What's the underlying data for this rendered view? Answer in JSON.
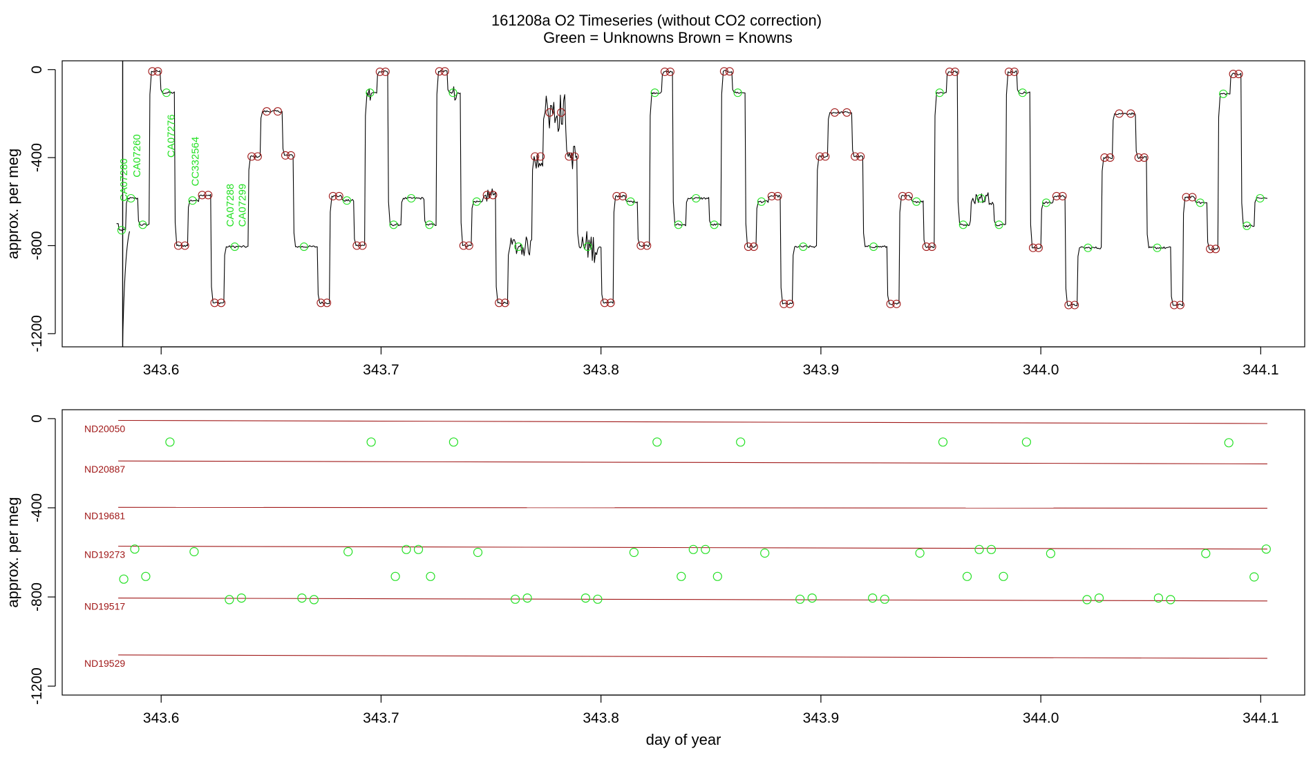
{
  "chart_data": {
    "title": "161208a   O2 Timeseries (without CO2 correction)",
    "subtitle_unknowns": "Green = Unknowns",
    "subtitle_knowns": "Brown = Knowns",
    "colors": {
      "unknown": "#22e022",
      "known": "#a01818",
      "trace": "#000000",
      "axis": "#000000"
    },
    "x_ticks": [
      "343.6",
      "343.7",
      "343.8",
      "343.9",
      "344.0",
      "344.1"
    ],
    "x_tick_values": [
      343.6,
      343.7,
      343.8,
      343.9,
      344.0,
      344.1
    ],
    "y_ticks": [
      "0",
      "-400",
      "-800",
      "-1200"
    ],
    "y_tick_values": [
      0,
      -400,
      -800,
      -1200
    ],
    "xlim": [
      343.555,
      344.12
    ],
    "panels": [
      {
        "type": "line",
        "ylabel": "approx. per meg",
        "ylim": [
          -1260,
          40
        ],
        "start_x": 343.5805,
        "start_y": -700,
        "segments": [
          {
            "x0": 343.5805,
            "x1": 343.5838,
            "y": -730,
            "k": "u"
          },
          {
            "x0": 343.5838,
            "x1": 343.5893,
            "y": -585,
            "k": "u"
          },
          {
            "x0": 343.5893,
            "x1": 343.5945,
            "y": -705,
            "k": "u"
          },
          {
            "x0": 343.5945,
            "x1": 343.5995,
            "y": -8,
            "k": "k"
          },
          {
            "x0": 343.5995,
            "x1": 343.606,
            "y": -105,
            "k": "u"
          },
          {
            "x0": 343.606,
            "x1": 343.612,
            "y": -800,
            "k": "k"
          },
          {
            "x0": 343.612,
            "x1": 343.617,
            "y": -595,
            "k": "u"
          },
          {
            "x0": 343.617,
            "x1": 343.6225,
            "y": -570,
            "k": "k"
          },
          {
            "x0": 343.6225,
            "x1": 343.6285,
            "y": -1060,
            "k": "k"
          },
          {
            "x0": 343.6285,
            "x1": 343.6395,
            "y": -805,
            "k": "u"
          },
          {
            "x0": 343.6395,
            "x1": 343.645,
            "y": -395,
            "k": "k"
          },
          {
            "x0": 343.645,
            "x1": 343.655,
            "y": -190,
            "k": "k"
          },
          {
            "x0": 343.655,
            "x1": 343.66,
            "y": -390,
            "k": "k"
          },
          {
            "x0": 343.66,
            "x1": 343.671,
            "y": -805,
            "k": "u"
          },
          {
            "x0": 343.671,
            "x1": 343.6765,
            "y": -1060,
            "k": "k"
          },
          {
            "x0": 343.6765,
            "x1": 343.682,
            "y": -575,
            "k": "k"
          },
          {
            "x0": 343.682,
            "x1": 343.6875,
            "y": -595,
            "k": "u"
          },
          {
            "x0": 343.6875,
            "x1": 343.6925,
            "y": -800,
            "k": "k"
          },
          {
            "x0": 343.6925,
            "x1": 343.698,
            "y": -105,
            "k": "u"
          },
          {
            "x0": 343.698,
            "x1": 343.703,
            "y": -10,
            "k": "k"
          },
          {
            "x0": 343.703,
            "x1": 343.709,
            "y": -705,
            "k": "u"
          },
          {
            "x0": 343.709,
            "x1": 343.7195,
            "y": -585,
            "k": "u"
          },
          {
            "x0": 343.7195,
            "x1": 343.725,
            "y": -705,
            "k": "u"
          },
          {
            "x0": 343.725,
            "x1": 343.73,
            "y": -8,
            "k": "k"
          },
          {
            "x0": 343.73,
            "x1": 343.736,
            "y": -105,
            "k": "u"
          },
          {
            "x0": 343.736,
            "x1": 343.741,
            "y": -800,
            "k": "k"
          },
          {
            "x0": 343.741,
            "x1": 343.7465,
            "y": -600,
            "k": "u"
          },
          {
            "x0": 343.7465,
            "x1": 343.752,
            "y": -570,
            "k": "k"
          },
          {
            "x0": 343.752,
            "x1": 343.7575,
            "y": -1060,
            "k": "k"
          },
          {
            "x0": 343.7575,
            "x1": 343.7685,
            "y": -805,
            "k": "u"
          },
          {
            "x0": 343.7685,
            "x1": 343.7735,
            "y": -395,
            "k": "k"
          },
          {
            "x0": 343.7735,
            "x1": 343.784,
            "y": -195,
            "k": "k"
          },
          {
            "x0": 343.784,
            "x1": 343.789,
            "y": -395,
            "k": "k"
          },
          {
            "x0": 343.789,
            "x1": 343.8,
            "y": -805,
            "k": "u"
          },
          {
            "x0": 343.8,
            "x1": 343.8055,
            "y": -1060,
            "k": "k"
          },
          {
            "x0": 343.8055,
            "x1": 343.811,
            "y": -575,
            "k": "k"
          },
          {
            "x0": 343.811,
            "x1": 343.8165,
            "y": -600,
            "k": "u"
          },
          {
            "x0": 343.8165,
            "x1": 343.822,
            "y": -800,
            "k": "k"
          },
          {
            "x0": 343.822,
            "x1": 343.8275,
            "y": -105,
            "k": "u"
          },
          {
            "x0": 343.8275,
            "x1": 343.8325,
            "y": -10,
            "k": "k"
          },
          {
            "x0": 343.8325,
            "x1": 343.8385,
            "y": -705,
            "k": "u"
          },
          {
            "x0": 343.8385,
            "x1": 343.849,
            "y": -585,
            "k": "u"
          },
          {
            "x0": 343.849,
            "x1": 343.8545,
            "y": -705,
            "k": "u"
          },
          {
            "x0": 343.8545,
            "x1": 343.8595,
            "y": -8,
            "k": "k"
          },
          {
            "x0": 343.8595,
            "x1": 343.8655,
            "y": -105,
            "k": "u"
          },
          {
            "x0": 343.8655,
            "x1": 343.8705,
            "y": -805,
            "k": "k"
          },
          {
            "x0": 343.8705,
            "x1": 343.876,
            "y": -600,
            "k": "u"
          },
          {
            "x0": 343.876,
            "x1": 343.8815,
            "y": -575,
            "k": "k"
          },
          {
            "x0": 343.8815,
            "x1": 343.887,
            "y": -1065,
            "k": "k"
          },
          {
            "x0": 343.887,
            "x1": 343.898,
            "y": -805,
            "k": "u"
          },
          {
            "x0": 343.898,
            "x1": 343.903,
            "y": -395,
            "k": "k"
          },
          {
            "x0": 343.903,
            "x1": 343.914,
            "y": -195,
            "k": "k"
          },
          {
            "x0": 343.914,
            "x1": 343.919,
            "y": -395,
            "k": "k"
          },
          {
            "x0": 343.919,
            "x1": 343.93,
            "y": -805,
            "k": "u"
          },
          {
            "x0": 343.93,
            "x1": 343.9355,
            "y": -1065,
            "k": "k"
          },
          {
            "x0": 343.9355,
            "x1": 343.941,
            "y": -575,
            "k": "k"
          },
          {
            "x0": 343.941,
            "x1": 343.9465,
            "y": -600,
            "k": "u"
          },
          {
            "x0": 343.9465,
            "x1": 343.9515,
            "y": -805,
            "k": "k"
          },
          {
            "x0": 343.9515,
            "x1": 343.957,
            "y": -105,
            "k": "u"
          },
          {
            "x0": 343.957,
            "x1": 343.962,
            "y": -10,
            "k": "k"
          },
          {
            "x0": 343.962,
            "x1": 343.968,
            "y": -705,
            "k": "u"
          },
          {
            "x0": 343.968,
            "x1": 343.9785,
            "y": -585,
            "k": "u"
          },
          {
            "x0": 343.9785,
            "x1": 343.984,
            "y": -705,
            "k": "u"
          },
          {
            "x0": 343.984,
            "x1": 343.989,
            "y": -10,
            "k": "k"
          },
          {
            "x0": 343.989,
            "x1": 343.995,
            "y": -105,
            "k": "u"
          },
          {
            "x0": 343.995,
            "x1": 344.0,
            "y": -810,
            "k": "k"
          },
          {
            "x0": 344.0,
            "x1": 344.0055,
            "y": -605,
            "k": "u"
          },
          {
            "x0": 344.0055,
            "x1": 344.011,
            "y": -575,
            "k": "k"
          },
          {
            "x0": 344.011,
            "x1": 344.0165,
            "y": -1070,
            "k": "k"
          },
          {
            "x0": 344.0165,
            "x1": 344.0275,
            "y": -810,
            "k": "u"
          },
          {
            "x0": 344.0275,
            "x1": 344.0325,
            "y": -400,
            "k": "k"
          },
          {
            "x0": 344.0325,
            "x1": 344.043,
            "y": -200,
            "k": "k"
          },
          {
            "x0": 344.043,
            "x1": 344.048,
            "y": -400,
            "k": "k"
          },
          {
            "x0": 344.048,
            "x1": 344.059,
            "y": -810,
            "k": "u"
          },
          {
            "x0": 344.059,
            "x1": 344.0645,
            "y": -1070,
            "k": "k"
          },
          {
            "x0": 344.0645,
            "x1": 344.07,
            "y": -580,
            "k": "k"
          },
          {
            "x0": 344.07,
            "x1": 344.0755,
            "y": -605,
            "k": "u"
          },
          {
            "x0": 344.0755,
            "x1": 344.0805,
            "y": -815,
            "k": "k"
          },
          {
            "x0": 344.0805,
            "x1": 344.086,
            "y": -110,
            "k": "u"
          },
          {
            "x0": 344.086,
            "x1": 344.091,
            "y": -20,
            "k": "k"
          },
          {
            "x0": 344.091,
            "x1": 344.097,
            "y": -710,
            "k": "u"
          },
          {
            "x0": 344.097,
            "x1": 344.103,
            "y": -585,
            "k": "u"
          }
        ],
        "noisy": [
          {
            "x0": 343.733,
            "x1": 343.735,
            "amp": 45
          },
          {
            "x0": 343.746,
            "x1": 343.752,
            "amp": 30
          },
          {
            "x0": 343.758,
            "x1": 343.769,
            "amp": 45
          },
          {
            "x0": 343.769,
            "x1": 343.774,
            "amp": 60
          },
          {
            "x0": 343.774,
            "x1": 343.784,
            "amp": 90
          },
          {
            "x0": 343.784,
            "x1": 343.7895,
            "amp": 60
          },
          {
            "x0": 343.7895,
            "x1": 343.799,
            "amp": 70
          },
          {
            "x0": 343.693,
            "x1": 343.696,
            "amp": 40
          },
          {
            "x0": 343.968,
            "x1": 343.979,
            "amp": 30
          }
        ],
        "spike_x": 343.5825,
        "annotations": [
          {
            "text": "CA07280",
            "x": 343.5845,
            "y": -600
          },
          {
            "text": "CA07260",
            "x": 343.5905,
            "y": -490
          },
          {
            "text": "CA07276",
            "x": 343.606,
            "y": -400
          },
          {
            "text": "CC332564",
            "x": 343.617,
            "y": -530
          },
          {
            "text": "CA07288",
            "x": 343.633,
            "y": -715
          },
          {
            "text": "CA07299",
            "x": 343.6385,
            "y": -715
          }
        ]
      },
      {
        "type": "scatter",
        "xlabel": "day of year",
        "ylabel": "approx. per meg",
        "ylim": [
          -1240,
          40
        ],
        "reference_lines": [
          {
            "name": "ND20050",
            "y0": -8,
            "y1": -22
          },
          {
            "name": "ND20887",
            "y0": -190,
            "y1": -203
          },
          {
            "name": "ND19681",
            "y0": -398,
            "y1": -402
          },
          {
            "name": "ND19273",
            "y0": -572,
            "y1": -585
          },
          {
            "name": "ND19517",
            "y0": -805,
            "y1": -818
          },
          {
            "name": "ND19529",
            "y0": -1060,
            "y1": -1075
          }
        ],
        "unknowns": [
          {
            "x": 343.583,
            "y": -720
          },
          {
            "x": 343.588,
            "y": -585
          },
          {
            "x": 343.593,
            "y": -708
          },
          {
            "x": 343.604,
            "y": -105
          },
          {
            "x": 343.615,
            "y": -597
          },
          {
            "x": 343.631,
            "y": -812
          },
          {
            "x": 343.6365,
            "y": -805
          },
          {
            "x": 343.664,
            "y": -805
          },
          {
            "x": 343.6695,
            "y": -812
          },
          {
            "x": 343.685,
            "y": -597
          },
          {
            "x": 343.6955,
            "y": -105
          },
          {
            "x": 343.7065,
            "y": -708
          },
          {
            "x": 343.7115,
            "y": -587
          },
          {
            "x": 343.717,
            "y": -587
          },
          {
            "x": 343.7225,
            "y": -708
          },
          {
            "x": 343.733,
            "y": -105
          },
          {
            "x": 343.744,
            "y": -600
          },
          {
            "x": 343.761,
            "y": -810
          },
          {
            "x": 343.7665,
            "y": -805
          },
          {
            "x": 343.793,
            "y": -805
          },
          {
            "x": 343.7985,
            "y": -810
          },
          {
            "x": 343.815,
            "y": -600
          },
          {
            "x": 343.8255,
            "y": -105
          },
          {
            "x": 343.8365,
            "y": -708
          },
          {
            "x": 343.842,
            "y": -587
          },
          {
            "x": 343.8475,
            "y": -587
          },
          {
            "x": 343.853,
            "y": -708
          },
          {
            "x": 343.8635,
            "y": -105
          },
          {
            "x": 343.8745,
            "y": -603
          },
          {
            "x": 343.8905,
            "y": -810
          },
          {
            "x": 343.896,
            "y": -805
          },
          {
            "x": 343.9235,
            "y": -805
          },
          {
            "x": 343.929,
            "y": -810
          },
          {
            "x": 343.945,
            "y": -603
          },
          {
            "x": 343.9555,
            "y": -105
          },
          {
            "x": 343.9665,
            "y": -708
          },
          {
            "x": 343.972,
            "y": -587
          },
          {
            "x": 343.9775,
            "y": -587
          },
          {
            "x": 343.983,
            "y": -708
          },
          {
            "x": 343.9935,
            "y": -105
          },
          {
            "x": 344.0045,
            "y": -605
          },
          {
            "x": 344.021,
            "y": -812
          },
          {
            "x": 344.0265,
            "y": -805
          },
          {
            "x": 344.0535,
            "y": -805
          },
          {
            "x": 344.059,
            "y": -812
          },
          {
            "x": 344.075,
            "y": -605
          },
          {
            "x": 344.0855,
            "y": -108
          },
          {
            "x": 344.097,
            "y": -710
          },
          {
            "x": 344.1025,
            "y": -585
          }
        ]
      }
    ]
  }
}
